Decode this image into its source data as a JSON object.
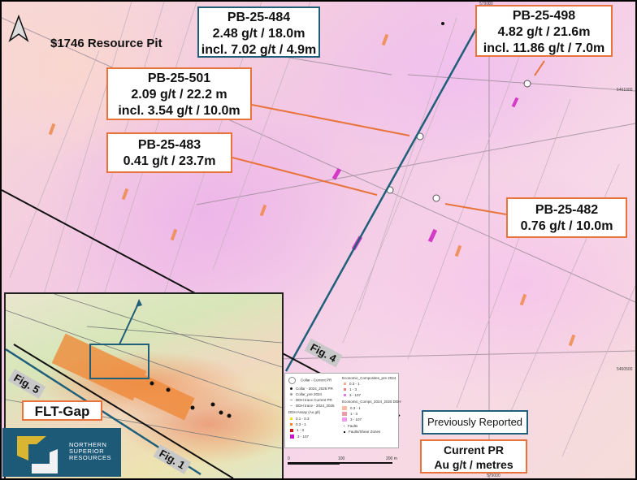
{
  "map": {
    "pit_label": "$1746 Resource Pit",
    "callouts": [
      {
        "hole": "PB-25-484",
        "lines": [
          "PB-25-484",
          "2.48 g/t  / 18.0m",
          "incl. 7.02 g/t / 4.9m"
        ],
        "style": "previously-reported"
      },
      {
        "hole": "PB-25-498",
        "lines": [
          "PB-25-498",
          "4.82 g/t / 21.6m",
          "incl. 11.86 g/t / 7.0m"
        ],
        "style": "current"
      },
      {
        "hole": "PB-25-501",
        "lines": [
          "PB-25-501",
          "2.09 g/t / 22.2 m",
          "incl. 3.54 g/t / 10.0m"
        ],
        "style": "current"
      },
      {
        "hole": "PB-25-483",
        "lines": [
          "PB-25-483",
          "0.41 g/t / 23.7m"
        ],
        "style": "current"
      },
      {
        "hole": "PB-25-482",
        "lines": [
          "PB-25-482",
          "0.76 g/t / 10.0m"
        ],
        "style": "current"
      }
    ],
    "figure_labels": {
      "fig4": "Fig. 4",
      "fig5": "Fig. 5",
      "fig1": "Fig. 1"
    },
    "flt_gap": "FLT-Gap",
    "key": {
      "previously_reported": "Previously Reported",
      "current_pr": [
        "Current PR",
        "Au g/t / metres"
      ]
    },
    "coords": {
      "top_easting": "579000",
      "bottom_easting": "579000",
      "northing_1": "5461000",
      "northing_2": "5460500"
    },
    "colors": {
      "current": "#e8743b",
      "previous": "#1f5f7a",
      "logo_bg": "#1d5a78",
      "logo_mark": "#d9b531"
    }
  },
  "legend": {
    "items_left": [
      {
        "label": "Collar - Current PR",
        "symbol": "large-open-circle"
      },
      {
        "label": "Collar - 2024_2025 PR",
        "symbol": "black-dot"
      },
      {
        "label": "Collar_pre 2024",
        "symbol": "grey-dot"
      },
      {
        "label": "DDH trace Current PR",
        "symbol": "line"
      },
      {
        "label": "DDH trace - 2024_2025",
        "symbol": "line"
      }
    ],
    "assay_title": "DDH Assay (Au g/t)",
    "assay": [
      {
        "label": "0.1 - 0.3",
        "color": "#f0e020"
      },
      {
        "label": "0.3 - 1",
        "color": "#f08030"
      },
      {
        "label": "1 - 3",
        "color": "#e01010"
      },
      {
        "label": "3 - 107",
        "color": "#d010d0"
      }
    ],
    "composites_pre_title": "Economic_Composites_pre 2024",
    "composites_pre": [
      {
        "label": "0.3 - 1",
        "color": "#f4b08a"
      },
      {
        "label": "1 - 3",
        "color": "#ec7f84"
      },
      {
        "label": "3 - 107",
        "color": "#e07ae8"
      }
    ],
    "composites_new_title": "Economic_Comps_2024_2025 DDH",
    "composites_new": [
      {
        "label": "0.3 - 1",
        "color": "#f6bca6"
      },
      {
        "label": "1 - 3",
        "color": "#ee9aa6"
      },
      {
        "label": "3 - 107",
        "color": "#f09af0"
      }
    ],
    "faults": "Faults",
    "shear": "Faults/Shear Zones",
    "scale": [
      "0",
      "100",
      "200 m"
    ]
  },
  "logo": {
    "lines": [
      "NORTHERN",
      "SUPERIOR",
      "RESOURCES"
    ]
  }
}
